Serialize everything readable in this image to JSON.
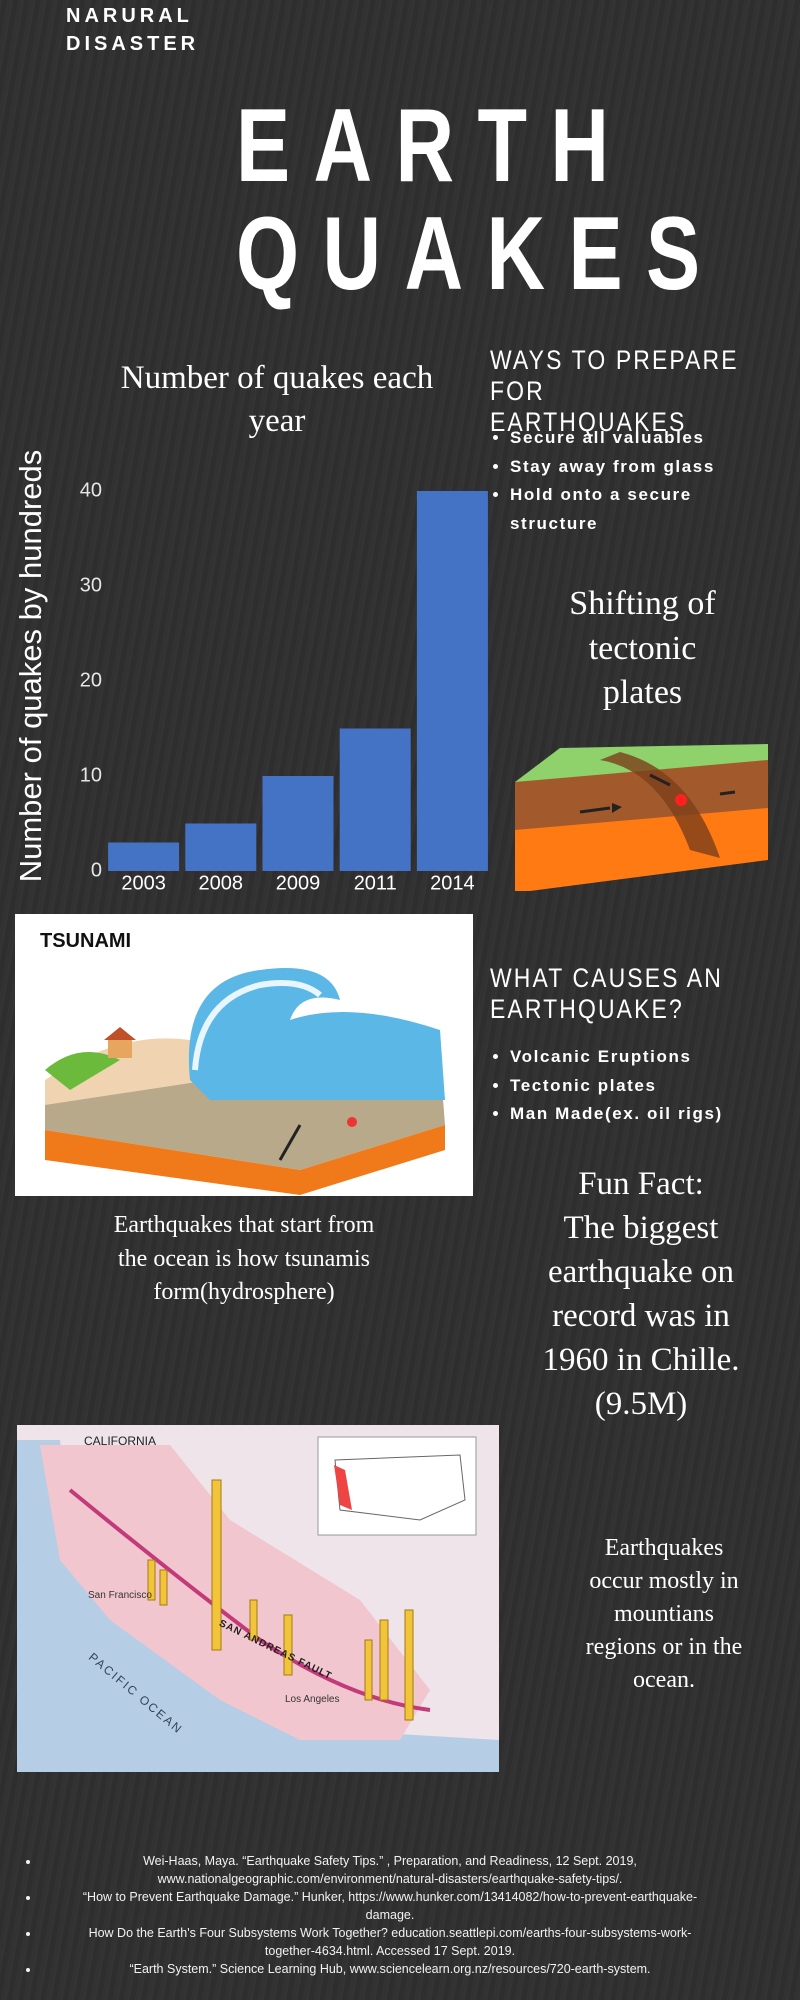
{
  "header": {
    "kicker_lines": [
      "NARURAL",
      "DISASTER"
    ],
    "title_lines": [
      "EARTH",
      "QUAKES"
    ]
  },
  "chart_data": {
    "type": "bar",
    "title_lines": [
      "Number of quakes each",
      "year"
    ],
    "y_label": "Number of quakes by hundreds",
    "categories": [
      "2003",
      "2008",
      "2009",
      "2011",
      "2014"
    ],
    "values": [
      3,
      5,
      10,
      15,
      40
    ],
    "color": "#4472c4",
    "ylim": [
      0,
      40
    ],
    "yticks": [
      0,
      10,
      20,
      30,
      40
    ],
    "grid": false
  },
  "prepare": {
    "heading_lines": [
      "WAYS TO PREPARE FOR",
      "EARTHQUAKES"
    ],
    "items": [
      "Secure all valuables",
      "Stay away from glass",
      "Hold onto a secure structure"
    ]
  },
  "tectonic": {
    "caption_lines": [
      "Shifting of",
      "tectonic",
      "plates"
    ]
  },
  "tsunami": {
    "image_label": "TSUNAMI",
    "caption_lines": [
      "Earthquakes that start from",
      "the ocean is how tsunamis",
      "form(hydrosphere)"
    ]
  },
  "causes": {
    "heading_lines": [
      "WHAT CAUSES AN",
      "EARTHQUAKE?"
    ],
    "items": [
      "Volcanic Eruptions",
      "Tectonic plates",
      "Man Made(ex. oil rigs)"
    ]
  },
  "fun_fact": {
    "lines": [
      "Fun Fact:",
      "The biggest",
      "earthquake on",
      "record was in",
      "1960 in Chille.",
      "(9.5M)"
    ]
  },
  "map": {
    "labels": [
      "CALIFORNIA",
      "PACIFIC OCEAN",
      "SAN ANDREAS FAULT",
      "San Francisco",
      "Los Angeles"
    ]
  },
  "mountains": {
    "caption_lines": [
      "Earthquakes",
      "occur mostly in",
      "mountians",
      "regions or in the",
      "ocean."
    ]
  },
  "references": [
    "Wei-Haas, Maya. “Earthquake Safety Tips.” , Preparation, and Readiness, 12 Sept. 2019, www.nationalgeographic.com/environment/natural-disasters/earthquake-safety-tips/.",
    "“How to Prevent Earthquake Damage.” Hunker, https://www.hunker.com/13414082/how-to-prevent-earthquake-damage.",
    "How Do the Earth's Four Subsystems Work Together? education.seattlepi.com/earths-four-subsystems-work-together-4634.html. Accessed 17 Sept. 2019.",
    "“Earth System.” Science Learning Hub, www.sciencelearn.org.nz/resources/720-earth-system."
  ]
}
